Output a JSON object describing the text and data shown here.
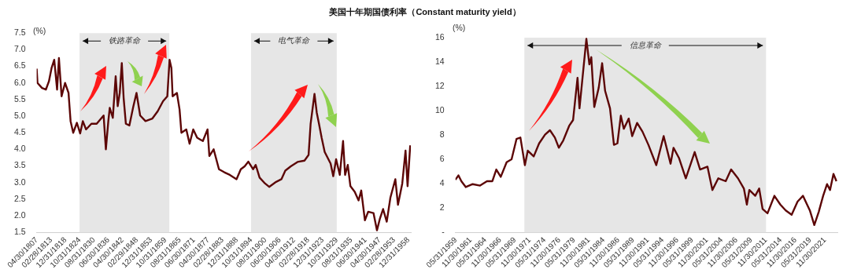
{
  "chart_data": [
    {
      "type": "line",
      "title": "美国十年期国债利率（Constant maturity yield）",
      "ylabel": "(%)",
      "color": "#5c0606",
      "x": [
        "1807-04",
        "1807-08",
        "1809-06",
        "1811-01",
        "1812-04",
        "1813-05",
        "1814-06",
        "1815-08",
        "1816-05",
        "1817-06",
        "1818-11",
        "1820-04",
        "1821-02",
        "1822-03",
        "1823-09",
        "1825-01",
        "1826-02",
        "1827-06",
        "1829-08",
        "1831-10",
        "1834-08",
        "1835-07",
        "1836-07",
        "1837-02",
        "1838-05",
        "1839-07",
        "1840-05",
        "1841-03",
        "1842-01",
        "1842-10",
        "1843-09",
        "1845-02",
        "1846-09",
        "1848-01",
        "1849-07",
        "1851-09",
        "1854-07",
        "1856-09",
        "1858-11",
        "1860-08",
        "1861-07",
        "1862-04",
        "1862-10",
        "1864-07",
        "1865-08",
        "1866-05",
        "1868-05",
        "1869-09",
        "1871-03",
        "1872-10",
        "1875-02",
        "1877-01",
        "1877-10",
        "1879-07",
        "1881-09",
        "1883-11",
        "1886-02",
        "1888-11",
        "1890-08",
        "1892-03",
        "1893-09",
        "1895-08",
        "1896-09",
        "1898-04",
        "1900-07",
        "1902-03",
        "1905-01",
        "1907-03",
        "1908-10",
        "1911-01",
        "1913-10",
        "1916-08",
        "1918-04",
        "1919-02",
        "1920-09",
        "1921-08",
        "1922-07",
        "1923-08",
        "1924-11",
        "1927-04",
        "1928-05",
        "1929-07",
        "1931-01",
        "1932-05",
        "1933-03",
        "1934-04",
        "1935-05",
        "1937-02",
        "1938-09",
        "1939-10",
        "1941-04",
        "1942-08",
        "1944-10",
        "1946-03",
        "1947-05",
        "1948-09",
        "1950-03",
        "1951-09",
        "1953-09",
        "1954-10",
        "1956-07",
        "1957-11",
        "1958-09",
        "1959-10"
      ],
      "values": [
        6.43,
        6.0,
        5.85,
        5.8,
        6.05,
        6.45,
        6.7,
        5.8,
        6.75,
        5.6,
        6.0,
        5.7,
        4.85,
        4.5,
        4.8,
        4.48,
        4.85,
        4.6,
        4.77,
        4.77,
        5.02,
        4.0,
        4.85,
        5.25,
        4.95,
        6.2,
        5.3,
        5.7,
        6.6,
        5.55,
        4.77,
        4.72,
        5.28,
        5.7,
        5.02,
        4.85,
        4.93,
        5.15,
        5.45,
        5.6,
        6.7,
        6.45,
        5.6,
        5.7,
        5.2,
        4.5,
        4.6,
        4.17,
        4.6,
        4.35,
        4.25,
        4.6,
        3.8,
        4.0,
        3.4,
        3.31,
        3.23,
        3.1,
        3.4,
        3.49,
        3.63,
        3.4,
        3.53,
        3.15,
        2.97,
        2.87,
        3.02,
        3.1,
        3.36,
        3.49,
        3.62,
        3.66,
        3.83,
        4.77,
        5.67,
        5.11,
        4.77,
        4.35,
        3.92,
        3.57,
        3.19,
        3.7,
        3.23,
        4.25,
        3.23,
        3.53,
        2.89,
        2.72,
        2.46,
        2.76,
        1.86,
        2.12,
        2.08,
        1.56,
        1.9,
        2.2,
        1.82,
        2.55,
        3.1,
        2.33,
        2.97,
        3.96,
        2.89,
        4.12
      ],
      "xlim": [
        "1807-04",
        "1959-12-31"
      ],
      "xticks": [
        {
          "value": "1807-04-30",
          "label": "04/30/1807"
        },
        {
          "value": "1813-02-28",
          "label": "02/28/1813"
        },
        {
          "value": "1818-12-31",
          "label": "12/31/1818"
        },
        {
          "value": "1824-10-31",
          "label": "10/31/1824"
        },
        {
          "value": "1830-08-31",
          "label": "08/31/1830"
        },
        {
          "value": "1836-06-30",
          "label": "06/30/1836"
        },
        {
          "value": "1842-04-30",
          "label": "04/30/1842"
        },
        {
          "value": "1848-02-29",
          "label": "02/29/1848"
        },
        {
          "value": "1853-12-31",
          "label": "12/31/1853"
        },
        {
          "value": "1859-10-31",
          "label": "10/31/1859"
        },
        {
          "value": "1865-08-31",
          "label": "08/31/1865"
        },
        {
          "value": "1871-06-30",
          "label": "06/30/1871"
        },
        {
          "value": "1877-04-30",
          "label": "04/30/1877"
        },
        {
          "value": "1883-02-28",
          "label": "02/28/1883"
        },
        {
          "value": "1888-12-31",
          "label": "12/31/1888"
        },
        {
          "value": "1894-10-31",
          "label": "10/31/1894"
        },
        {
          "value": "1900-08-31",
          "label": "08/31/1900"
        },
        {
          "value": "1906-06-30",
          "label": "06/30/1906"
        },
        {
          "value": "1912-04-30",
          "label": "04/30/1912"
        },
        {
          "value": "1918-02-28",
          "label": "02/28/1918"
        },
        {
          "value": "1923-12-31",
          "label": "12/31/1923"
        },
        {
          "value": "1929-10-31",
          "label": "10/31/1929"
        },
        {
          "value": "1935-08-31",
          "label": "08/31/1935"
        },
        {
          "value": "1941-06-30",
          "label": "06/30/1941"
        },
        {
          "value": "1947-04-30",
          "label": "04/30/1947"
        },
        {
          "value": "1953-02-28",
          "label": "02/28/1953"
        },
        {
          "value": "1958-12-31",
          "label": "12/31/1958"
        }
      ],
      "ylim": [
        1.5,
        7.5
      ],
      "yticks": [
        1.5,
        {
          "value": 2,
          "label": "2.0"
        },
        2.5,
        {
          "value": 3,
          "label": "3.0"
        },
        3.5,
        {
          "value": 4,
          "label": "4.0"
        },
        4.5,
        {
          "value": 5,
          "label": "5.0"
        },
        5.5,
        {
          "value": 6,
          "label": "6.0"
        },
        6.5,
        {
          "value": 7,
          "label": "7.0"
        },
        7.5
      ],
      "bands": [
        {
          "axis": "x",
          "from": "1824-10",
          "to": "1861-06",
          "label": "铁路革命",
          "color": "#e6e6e6"
        },
        {
          "axis": "x",
          "from": "1894-10",
          "to": "1929-10",
          "label": "电气革命",
          "color": "#e6e6e6"
        }
      ]
    },
    {
      "type": "line",
      "ylabel": "(%)",
      "color": "#5c0606",
      "x": [
        "1959-05",
        "1959-11",
        "1960-05",
        "1961-02",
        "1962-04",
        "1963-07",
        "1964-09",
        "1965-08",
        "1966-04",
        "1967-01",
        "1968-01",
        "1968-11",
        "1969-09",
        "1970-05",
        "1971-02",
        "1971-08",
        "1972-08",
        "1973-07",
        "1974-07",
        "1975-05",
        "1976-03",
        "1976-11",
        "1977-08",
        "1978-08",
        "1979-04",
        "1980-01",
        "1980-05",
        "1981-02",
        "1981-07",
        "1982-01",
        "1982-05",
        "1982-11",
        "1983-08",
        "1984-03",
        "1984-09",
        "1985-07",
        "1986-03",
        "1986-10",
        "1987-05",
        "1987-11",
        "1988-09",
        "1989-04",
        "1990-02",
        "1991-01",
        "1992-01",
        "1993-05",
        "1994-08",
        "1995-10",
        "1996-04",
        "1997-03",
        "1998-05",
        "1999-11",
        "2000-10",
        "2002-01",
        "2002-11",
        "2003-11",
        "2005-02",
        "2006-01",
        "2007-03",
        "2008-03",
        "2008-09",
        "2009-02",
        "2010-02",
        "2010-10",
        "2011-05",
        "2012-03",
        "2013-05",
        "2014-05",
        "2015-04",
        "2016-04",
        "2017-04",
        "2018-03",
        "2019-05",
        "2020-02",
        "2020-11",
        "2021-08",
        "2022-04",
        "2022-10",
        "2023-05",
        "2023-11"
      ],
      "values": [
        4.32,
        4.68,
        4.2,
        3.72,
        3.96,
        3.84,
        4.2,
        4.2,
        5.16,
        4.56,
        5.76,
        6.0,
        7.67,
        7.79,
        5.52,
        6.71,
        6.24,
        7.31,
        8.03,
        8.39,
        7.79,
        6.95,
        7.55,
        8.75,
        9.23,
        12.7,
        10.19,
        13.9,
        15.9,
        13.8,
        14.4,
        10.3,
        11.87,
        13.9,
        11.63,
        10.19,
        7.19,
        7.31,
        9.59,
        8.51,
        9.35,
        7.91,
        8.99,
        8.27,
        7.19,
        5.52,
        7.91,
        5.64,
        6.95,
        6.12,
        4.44,
        6.6,
        5.16,
        5.4,
        3.48,
        4.44,
        4.2,
        5.16,
        4.44,
        3.6,
        2.28,
        3.48,
        3.0,
        3.6,
        1.92,
        1.56,
        3.0,
        2.28,
        1.8,
        1.44,
        2.52,
        3.0,
        1.8,
        0.6,
        1.68,
        3.0,
        3.96,
        3.48,
        4.8,
        4.2
      ],
      "xlim": [
        "1959-05",
        "2023-12-31"
      ],
      "xticks": [
        {
          "value": "1959-05-31",
          "label": "05/31/1959"
        },
        {
          "value": "1961-11-30",
          "label": "11/30/1961"
        },
        {
          "value": "1964-05-31",
          "label": "05/31/1964"
        },
        {
          "value": "1966-11-30",
          "label": "11/30/1966"
        },
        {
          "value": "1969-05-31",
          "label": "05/31/1969"
        },
        {
          "value": "1971-11-30",
          "label": "11/30/1971"
        },
        {
          "value": "1974-05-31",
          "label": "05/31/1974"
        },
        {
          "value": "1976-11-30",
          "label": "11/30/1976"
        },
        {
          "value": "1979-05-31",
          "label": "05/31/1979"
        },
        {
          "value": "1981-11-30",
          "label": "11/30/1981"
        },
        {
          "value": "1984-05-31",
          "label": "05/31/1984"
        },
        {
          "value": "1986-11-30",
          "label": "11/30/1986"
        },
        {
          "value": "1989-05-31",
          "label": "05/31/1989"
        },
        {
          "value": "1991-11-30",
          "label": "11/30/1991"
        },
        {
          "value": "1994-05-31",
          "label": "05/31/1994"
        },
        {
          "value": "1996-11-30",
          "label": "11/30/1996"
        },
        {
          "value": "1999-05-31",
          "label": "05/31/1999"
        },
        {
          "value": "2001-11-30",
          "label": "11/30/2001"
        },
        {
          "value": "2004-05-31",
          "label": "05/31/2004"
        },
        {
          "value": "2006-11-30",
          "label": "11/30/2006"
        },
        {
          "value": "2009-05-31",
          "label": "05/31/2009"
        },
        {
          "value": "2011-11-30",
          "label": "11/30/2011"
        },
        {
          "value": "2014-05-31",
          "label": "05/31/2014"
        },
        {
          "value": "2016-11-30",
          "label": "11/30/2016"
        },
        {
          "value": "2019-05-31",
          "label": "05/31/2019"
        },
        {
          "value": "2021-11-30",
          "label": "11/30/2021"
        }
      ],
      "ylim": [
        0,
        16
      ],
      "yticks": [
        {
          "value": 0,
          "label": "-"
        },
        2,
        4,
        6,
        8,
        10,
        12,
        14,
        16
      ],
      "bands": [
        {
          "axis": "x",
          "from": "1971-01",
          "to": "2011-12",
          "label": "信息革命",
          "color": "#e6e6e6"
        }
      ]
    }
  ]
}
